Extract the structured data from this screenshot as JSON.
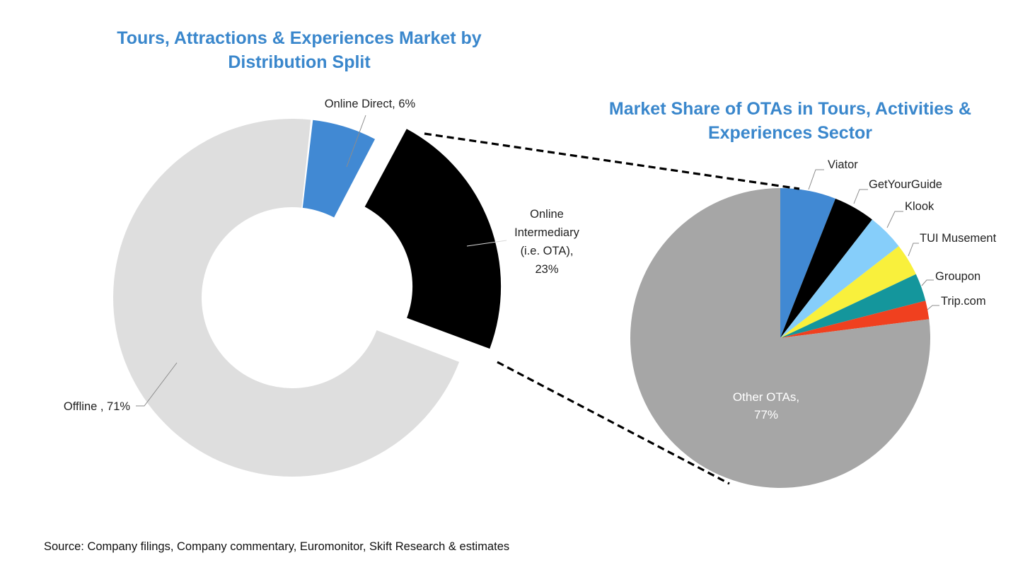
{
  "chart_data": [
    {
      "type": "pie",
      "style": "donut",
      "title_lines": [
        "Tours, Attractions & Experiences Market by",
        "Distribution Split"
      ],
      "categories": [
        "Online Direct",
        "Online Intermediary (i.e. OTA)",
        "Offline"
      ],
      "values": [
        6,
        23,
        71
      ],
      "unit": "%",
      "colors": [
        "#4189d3",
        "#000000",
        "#dedede"
      ],
      "exploded": "Online Intermediary (i.e. OTA)",
      "labels": {
        "online_direct": "Online Direct, 6%",
        "intermediary_lines": [
          "Online",
          "Intermediary",
          "(i.e. OTA),",
          "23%"
        ],
        "offline": "Offline , 71%"
      }
    },
    {
      "type": "pie",
      "title_lines": [
        "Market Share of OTAs in Tours, Activities &",
        "Experiences Sector"
      ],
      "categories": [
        "Viator",
        "GetYourGuide",
        "Klook",
        "TUI Musement",
        "Groupon",
        "Trip.com",
        "Other OTAs"
      ],
      "values": [
        6,
        4.5,
        4,
        3.5,
        3,
        2,
        77
      ],
      "unit": "%",
      "colors": [
        "#4189d3",
        "#000000",
        "#86cefa",
        "#f9f03c",
        "#14969c",
        "#f0401f",
        "#a6a6a6"
      ],
      "labels": {
        "viator": "Viator",
        "getyourguide": "GetYourGuide",
        "klook": "Klook",
        "tui": "TUI Musement",
        "groupon": "Groupon",
        "tripcom": "Trip.com",
        "other_lines": [
          "Other OTAs,",
          "77%"
        ]
      }
    }
  ],
  "source": "Source: Company filings, Company commentary, Euromonitor, Skift Research & estimates"
}
